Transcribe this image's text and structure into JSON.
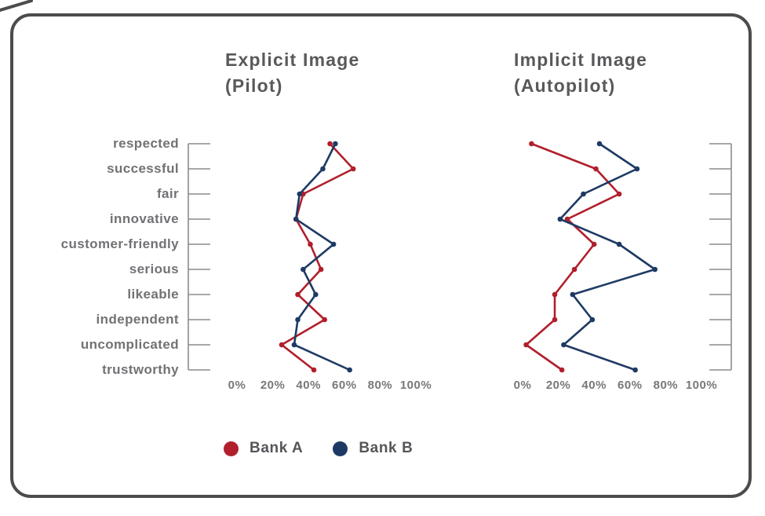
{
  "card": {
    "border_color": "#4a4d4b"
  },
  "categories": [
    "respected",
    "successful",
    "fair",
    "innovative",
    "customer-friendly",
    "serious",
    "likeable",
    "independent",
    "uncomplicated",
    "trustworthy"
  ],
  "x_axis": {
    "tick_labels": [
      "0%",
      "20%",
      "40%",
      "60%",
      "80%",
      "100%"
    ]
  },
  "panels": [
    {
      "title": "Explicit Image",
      "subtitle": "(Pilot)"
    },
    {
      "title": "Implicit Image",
      "subtitle": "(Autopilot)"
    }
  ],
  "legend": [
    {
      "label": "Bank A",
      "color": "#b11f2c"
    },
    {
      "label": "Bank B",
      "color": "#1e3a64"
    }
  ],
  "chart_data": [
    {
      "type": "line",
      "title": "Explicit Image (Pilot)",
      "orientation": "vertical-profile",
      "categories": [
        "respected",
        "successful",
        "fair",
        "innovative",
        "customer-friendly",
        "serious",
        "likeable",
        "independent",
        "uncomplicated",
        "trustworthy"
      ],
      "xlim": [
        0,
        100
      ],
      "x_tick_labels": [
        "0%",
        "20%",
        "40%",
        "60%",
        "80%",
        "100%"
      ],
      "grid": false,
      "series": [
        {
          "name": "Bank A",
          "color": "#b11f2c",
          "values": [
            52,
            65,
            37,
            33,
            41,
            47,
            34,
            49,
            25,
            43
          ]
        },
        {
          "name": "Bank B",
          "color": "#1e3a64",
          "values": [
            55,
            48,
            35,
            33,
            54,
            37,
            44,
            34,
            32,
            63
          ]
        }
      ]
    },
    {
      "type": "line",
      "title": "Implicit Image (Autopilot)",
      "orientation": "vertical-profile",
      "categories": [
        "respected",
        "successful",
        "fair",
        "innovative",
        "customer-friendly",
        "serious",
        "likeable",
        "independent",
        "uncomplicated",
        "trustworthy"
      ],
      "xlim": [
        0,
        100
      ],
      "x_tick_labels": [
        "0%",
        "20%",
        "40%",
        "60%",
        "80%",
        "100%"
      ],
      "grid": false,
      "series": [
        {
          "name": "Bank A",
          "color": "#b11f2c",
          "values": [
            5,
            41,
            54,
            25,
            40,
            29,
            18,
            18,
            2,
            22
          ]
        },
        {
          "name": "Bank B",
          "color": "#1e3a64",
          "values": [
            43,
            64,
            34,
            21,
            54,
            74,
            28,
            39,
            23,
            63
          ]
        }
      ]
    }
  ]
}
